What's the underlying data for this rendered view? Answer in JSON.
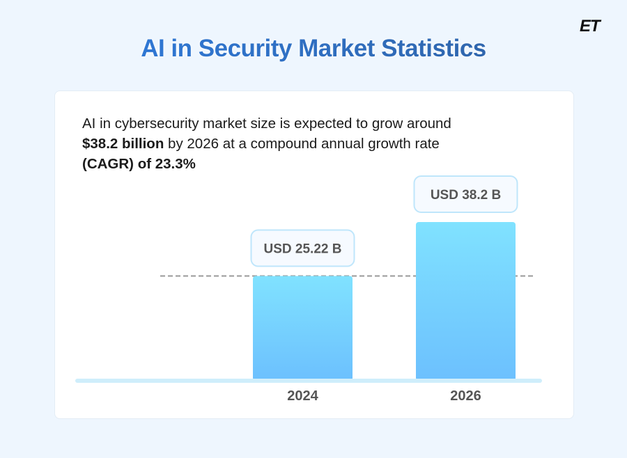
{
  "title": "AI in Security Market Statistics",
  "logo": "ET",
  "description": {
    "line1": "AI in cybersecurity market size is expected to grow around",
    "bold1": "$38.2 billion",
    "line2": " by 2026 at a compound annual growth rate",
    "bold2": "(CAGR) of 23.3%"
  },
  "chart_data": {
    "type": "bar",
    "categories": [
      "2024",
      "2026"
    ],
    "values": [
      25.22,
      38.2
    ],
    "data_labels": [
      "USD 25.22 B",
      "USD 38.2 B"
    ],
    "unit": "USD billion",
    "ylim": [
      0,
      38.2
    ],
    "reference_line": 25.22,
    "grid": false,
    "colors": {
      "bar_top": "#80e2ff",
      "bar_bottom": "#6cc0fe",
      "baseline": "#cfeefb",
      "label_border": "#bfe6fb"
    }
  }
}
